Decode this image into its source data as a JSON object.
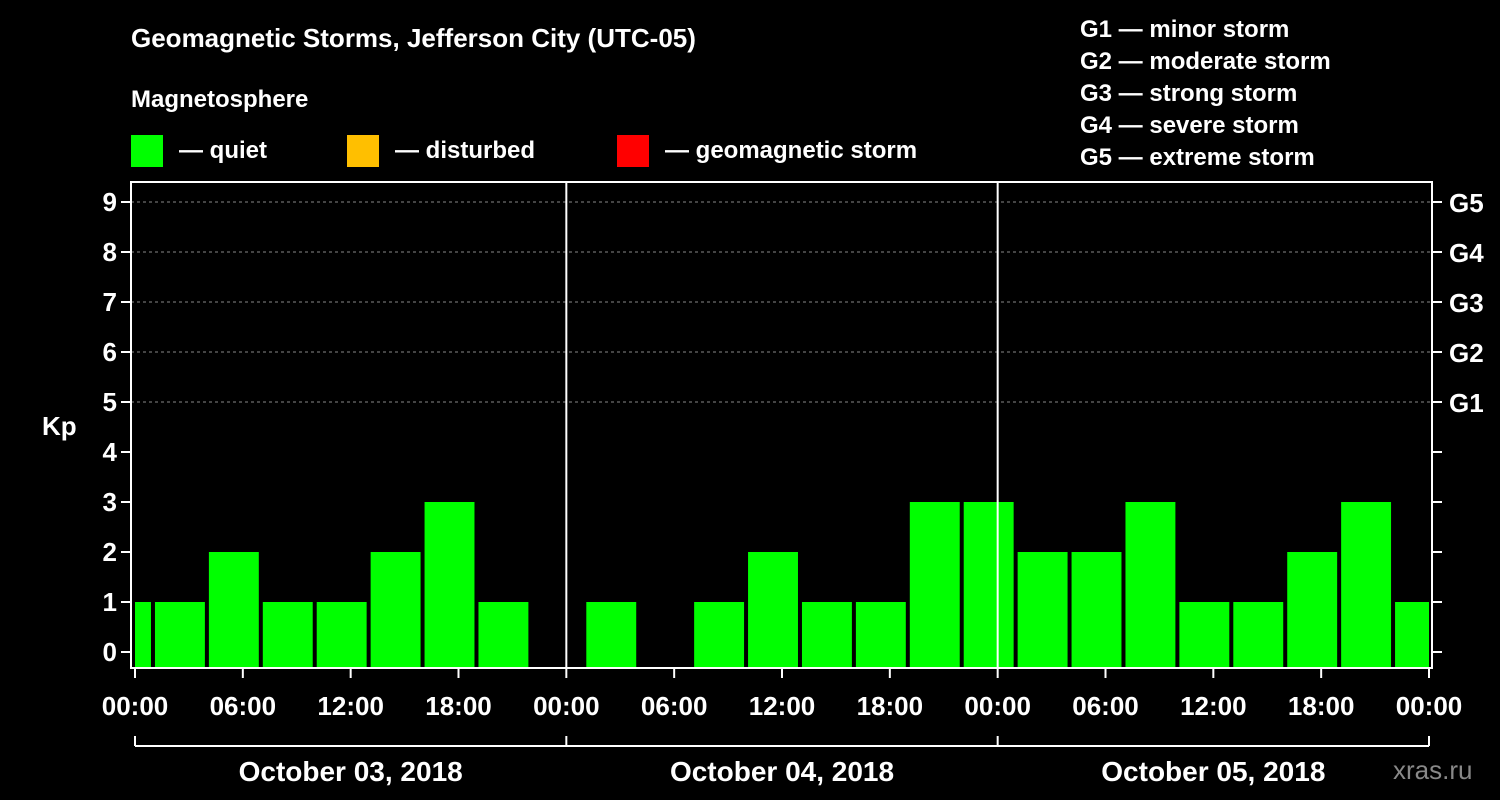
{
  "chart_data": {
    "type": "bar",
    "title": "Geomagnetic Storms, Jefferson City (UTC-05)",
    "subtitle": "Magnetosphere",
    "ylabel": "Kp",
    "ylim": [
      0,
      9
    ],
    "yticks": [
      "0",
      "1",
      "2",
      "3",
      "4",
      "5",
      "6",
      "7",
      "8",
      "9"
    ],
    "right_ticks": [
      {
        "kp": 5,
        "label": "G1"
      },
      {
        "kp": 6,
        "label": "G2"
      },
      {
        "kp": 7,
        "label": "G3"
      },
      {
        "kp": 8,
        "label": "G4"
      },
      {
        "kp": 9,
        "label": "G5"
      }
    ],
    "xrange_hours": [
      0,
      72
    ],
    "xticks": [
      {
        "hour": 0,
        "label": "00:00"
      },
      {
        "hour": 6,
        "label": "06:00"
      },
      {
        "hour": 12,
        "label": "12:00"
      },
      {
        "hour": 18,
        "label": "18:00"
      },
      {
        "hour": 24,
        "label": "00:00"
      },
      {
        "hour": 30,
        "label": "06:00"
      },
      {
        "hour": 36,
        "label": "12:00"
      },
      {
        "hour": 42,
        "label": "18:00"
      },
      {
        "hour": 48,
        "label": "00:00"
      },
      {
        "hour": 54,
        "label": "06:00"
      },
      {
        "hour": 60,
        "label": "12:00"
      },
      {
        "hour": 66,
        "label": "18:00"
      },
      {
        "hour": 72,
        "label": "00:00"
      }
    ],
    "days": [
      "October 03, 2018",
      "October 04, 2018",
      "October 05, 2018"
    ],
    "day_boundaries_hours": [
      24,
      48
    ],
    "bars": [
      {
        "start": 0,
        "end": 1,
        "kp": 1
      },
      {
        "start": 1,
        "end": 4,
        "kp": 1
      },
      {
        "start": 4,
        "end": 7,
        "kp": 2
      },
      {
        "start": 7,
        "end": 10,
        "kp": 1
      },
      {
        "start": 10,
        "end": 13,
        "kp": 1
      },
      {
        "start": 13,
        "end": 16,
        "kp": 2
      },
      {
        "start": 16,
        "end": 19,
        "kp": 3
      },
      {
        "start": 19,
        "end": 22,
        "kp": 1
      },
      {
        "start": 25,
        "end": 28,
        "kp": 1
      },
      {
        "start": 31,
        "end": 34,
        "kp": 1
      },
      {
        "start": 34,
        "end": 37,
        "kp": 2
      },
      {
        "start": 37,
        "end": 40,
        "kp": 1
      },
      {
        "start": 40,
        "end": 43,
        "kp": 1
      },
      {
        "start": 43,
        "end": 46,
        "kp": 3
      },
      {
        "start": 46,
        "end": 49,
        "kp": 3
      },
      {
        "start": 49,
        "end": 52,
        "kp": 2
      },
      {
        "start": 52,
        "end": 55,
        "kp": 2
      },
      {
        "start": 55,
        "end": 58,
        "kp": 3
      },
      {
        "start": 58,
        "end": 61,
        "kp": 1
      },
      {
        "start": 61,
        "end": 64,
        "kp": 1
      },
      {
        "start": 64,
        "end": 67,
        "kp": 2
      },
      {
        "start": 67,
        "end": 70,
        "kp": 3
      },
      {
        "start": 70,
        "end": 72,
        "kp": 1
      }
    ],
    "colors": {
      "quiet": "#00ff00",
      "disturbed": "#ffbf00",
      "storm": "#ff0000",
      "background": "#000000",
      "axis": "#ffffff",
      "grid": "#888888"
    }
  },
  "legend": [
    {
      "color": "#00ff00",
      "label": "— quiet"
    },
    {
      "color": "#ffbf00",
      "label": "— disturbed"
    },
    {
      "color": "#ff0000",
      "label": "— geomagnetic storm"
    }
  ],
  "gscale": [
    "G1 — minor storm",
    "G2 — moderate storm",
    "G3 — strong storm",
    "G4 — severe storm",
    "G5 — extreme storm"
  ],
  "watermark": "xras.ru"
}
